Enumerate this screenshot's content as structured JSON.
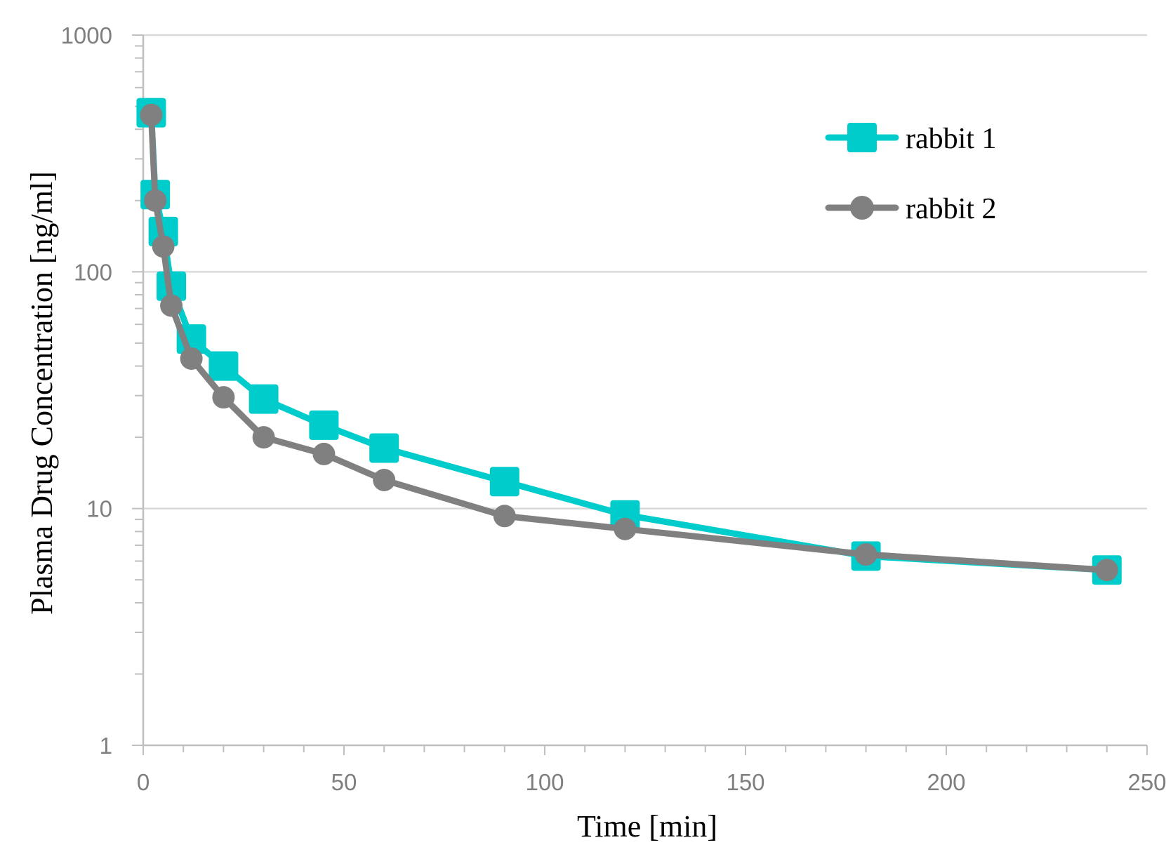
{
  "chart_data": {
    "type": "line",
    "title": "",
    "xlabel": "Time [min]",
    "ylabel": "Plasma Drug Concentration [ng/ml]",
    "xlim": [
      0,
      250
    ],
    "ylim": [
      1,
      1000
    ],
    "yscale": "log",
    "x_ticks": [
      "0",
      "50",
      "100",
      "150",
      "200",
      "250"
    ],
    "y_ticks": [
      "1",
      "10",
      "100",
      "1000"
    ],
    "grid": "horizontal major",
    "legend_position": "top-right",
    "series": [
      {
        "name": "rabbit 1",
        "color": "#00cccc",
        "marker": "square",
        "x": [
          2,
          3,
          5,
          7,
          12,
          20,
          30,
          45,
          60,
          90,
          120,
          180,
          240
        ],
        "y": [
          470,
          212,
          148,
          87,
          52,
          40,
          29,
          22.5,
          18,
          13,
          9.4,
          6.3,
          5.5
        ]
      },
      {
        "name": "rabbit 2",
        "color": "#808080",
        "marker": "circle",
        "x": [
          2,
          3,
          5,
          7,
          12,
          20,
          30,
          45,
          60,
          90,
          120,
          180,
          240
        ],
        "y": [
          460,
          200,
          128,
          72,
          43,
          29.5,
          20,
          17,
          13.2,
          9.3,
          8.2,
          6.4,
          5.5
        ]
      }
    ]
  }
}
